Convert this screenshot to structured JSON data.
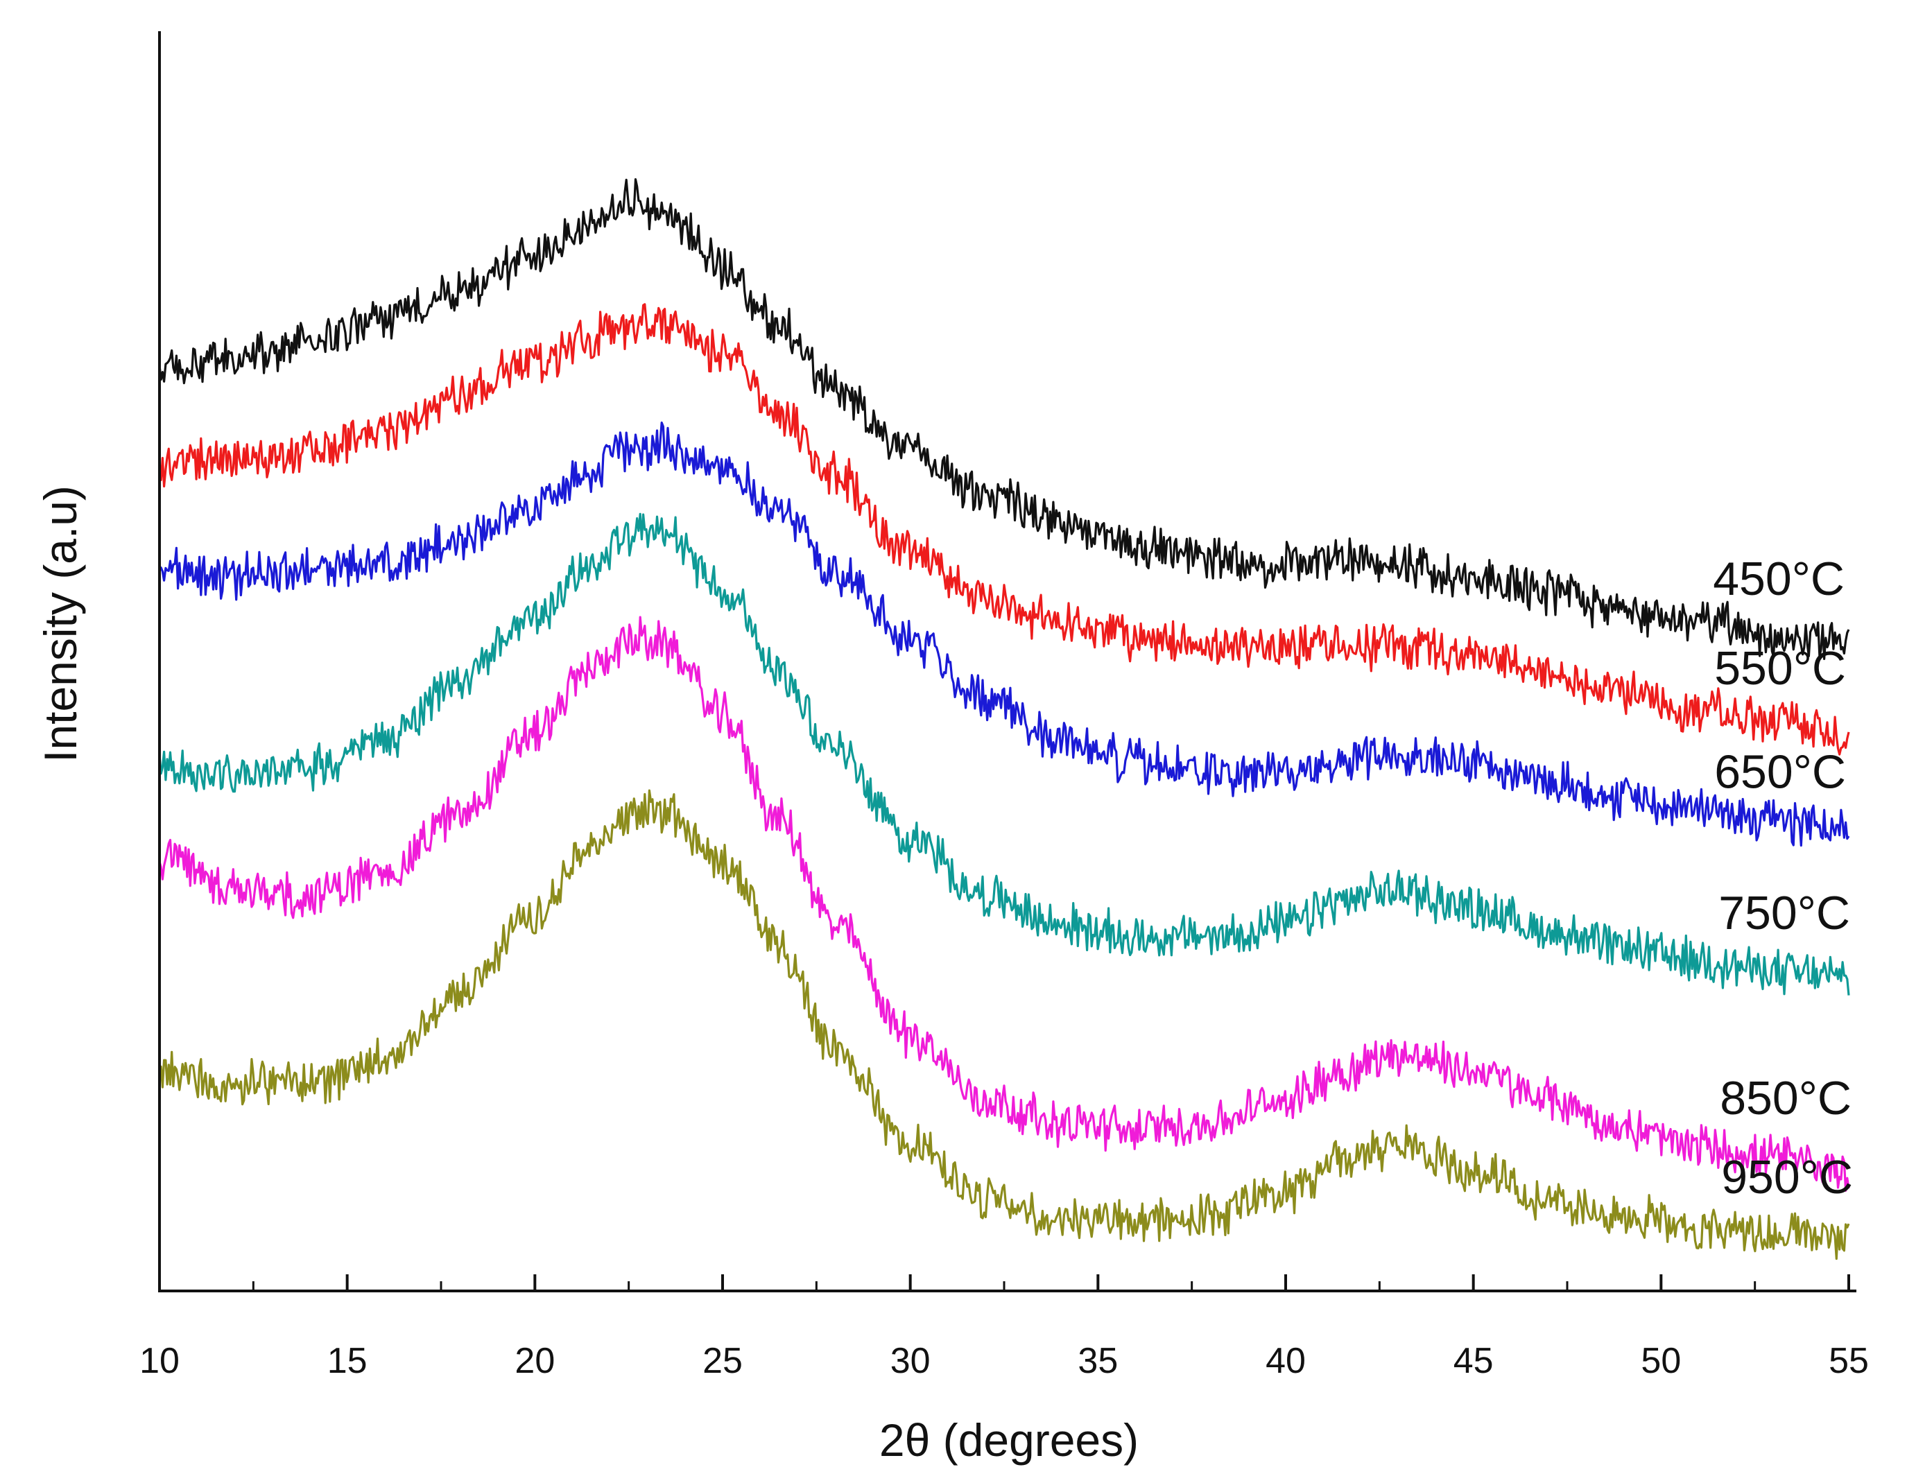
{
  "chart_data": {
    "type": "line",
    "title": "",
    "xlabel": "2θ (degrees)",
    "ylabel": "Intensity (a.u)",
    "xlim": [
      10,
      55
    ],
    "xticks": [
      10,
      15,
      20,
      25,
      30,
      35,
      40,
      45,
      50,
      55
    ],
    "ylim": [
      0,
      10
    ],
    "yticks_shown": false,
    "grid": false,
    "legend": "labels at right end of each trace",
    "series": [
      {
        "name": "450°C",
        "color": "#111111",
        "x": [
          10,
          12,
          14,
          16,
          18,
          20,
          21.5,
          22.5,
          23.5,
          25,
          26.5,
          28,
          30,
          32,
          34,
          36,
          38,
          40,
          41.5,
          43,
          45,
          47,
          49,
          51,
          53,
          55
        ],
        "y": [
          7.7,
          7.8,
          7.95,
          8.15,
          8.4,
          8.7,
          8.95,
          9.2,
          9.05,
          8.6,
          8.1,
          7.55,
          7.0,
          6.65,
          6.4,
          6.2,
          6.1,
          6.05,
          6.1,
          6.05,
          5.95,
          5.8,
          5.65,
          5.55,
          5.45,
          5.4
        ]
      },
      {
        "name": "550°C",
        "color": "#ee1c1c",
        "x": [
          10,
          12,
          14,
          16,
          18,
          20,
          21.5,
          22.5,
          23.5,
          25,
          26.5,
          28,
          30,
          32,
          34,
          36,
          38,
          40,
          41.5,
          43,
          45,
          47,
          49,
          51,
          53,
          55
        ],
        "y": [
          6.9,
          6.95,
          7.05,
          7.2,
          7.5,
          7.8,
          8.0,
          8.1,
          8.1,
          7.85,
          7.35,
          6.8,
          6.15,
          5.75,
          5.55,
          5.4,
          5.35,
          5.35,
          5.35,
          5.35,
          5.25,
          5.1,
          4.95,
          4.8,
          4.7,
          4.6
        ]
      },
      {
        "name": "650°C",
        "color": "#1a1ad6",
        "x": [
          10,
          12,
          14,
          16,
          18,
          20,
          21.5,
          22.5,
          23.5,
          25,
          26.5,
          28,
          30,
          32,
          34,
          36,
          38,
          40,
          41.5,
          43,
          45,
          47,
          49,
          51,
          53,
          55
        ],
        "y": [
          6.0,
          5.95,
          6.0,
          6.05,
          6.25,
          6.55,
          6.85,
          7.05,
          7.05,
          6.9,
          6.5,
          6.0,
          5.4,
          4.9,
          4.55,
          4.35,
          4.25,
          4.25,
          4.35,
          4.45,
          4.35,
          4.2,
          4.05,
          3.95,
          3.85,
          3.8
        ]
      },
      {
        "name": "750°C",
        "color": "#0e9a96",
        "x": [
          10,
          12,
          14,
          16,
          18,
          20,
          21.5,
          22.5,
          23.5,
          25,
          26.5,
          28,
          30,
          32,
          34,
          36,
          38,
          40,
          41.5,
          43,
          45,
          47,
          49,
          51,
          53,
          55
        ],
        "y": [
          4.3,
          4.25,
          4.3,
          4.55,
          5.05,
          5.6,
          6.05,
          6.3,
          6.3,
          5.85,
          5.15,
          4.45,
          3.7,
          3.2,
          2.95,
          2.85,
          2.85,
          2.95,
          3.15,
          3.25,
          3.1,
          2.9,
          2.75,
          2.65,
          2.55,
          2.5
        ]
      },
      {
        "name": "850°C",
        "color": "#f01cd8",
        "x": [
          10,
          12,
          14,
          16,
          18,
          20,
          21.5,
          22.5,
          23.5,
          25,
          26.5,
          28,
          30,
          32,
          34,
          36,
          38,
          40,
          41.5,
          43,
          45,
          47,
          49,
          51,
          53,
          55
        ],
        "y": [
          3.55,
          3.25,
          3.2,
          3.4,
          3.9,
          4.6,
          5.15,
          5.4,
          5.35,
          4.75,
          3.85,
          2.95,
          2.0,
          1.45,
          1.25,
          1.2,
          1.25,
          1.45,
          1.7,
          1.85,
          1.7,
          1.45,
          1.2,
          1.05,
          0.95,
          0.85
        ]
      },
      {
        "name": "950°C",
        "color": "#8c8c1c",
        "x": [
          10,
          12,
          14,
          16,
          18,
          20,
          21.5,
          22.5,
          23.5,
          25,
          26.5,
          28,
          30,
          32,
          34,
          36,
          38,
          40,
          41.5,
          43,
          45,
          47,
          49,
          51,
          53,
          55
        ],
        "y": [
          1.7,
          1.6,
          1.6,
          1.8,
          2.35,
          3.05,
          3.6,
          3.9,
          3.95,
          3.5,
          2.75,
          1.9,
          1.05,
          0.6,
          0.45,
          0.4,
          0.45,
          0.65,
          0.95,
          1.05,
          0.85,
          0.6,
          0.45,
          0.35,
          0.3,
          0.28
        ]
      }
    ]
  }
}
